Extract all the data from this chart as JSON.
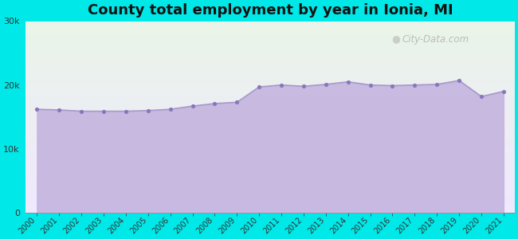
{
  "title": "County total employment by year in Ionia, MI",
  "years": [
    2000,
    2001,
    2002,
    2003,
    2004,
    2005,
    2006,
    2007,
    2008,
    2009,
    2010,
    2011,
    2012,
    2013,
    2014,
    2015,
    2016,
    2017,
    2018,
    2019,
    2020,
    2021
  ],
  "values": [
    16200,
    16100,
    15900,
    15900,
    15900,
    16000,
    16200,
    16700,
    17100,
    17300,
    19700,
    20000,
    19800,
    20100,
    20500,
    20000,
    19900,
    20000,
    20100,
    20700,
    18200,
    19000
  ],
  "line_color": "#a899cc",
  "fill_color": "#c4b4df",
  "marker_color": "#8878bb",
  "background_outer": "#00e8e8",
  "background_inner_top": "#eaf5e8",
  "background_inner_bottom": "#f0e8ff",
  "ylim": [
    0,
    30000
  ],
  "yticks": [
    0,
    10000,
    20000,
    30000
  ],
  "title_fontsize": 13,
  "watermark": "City-Data.com"
}
